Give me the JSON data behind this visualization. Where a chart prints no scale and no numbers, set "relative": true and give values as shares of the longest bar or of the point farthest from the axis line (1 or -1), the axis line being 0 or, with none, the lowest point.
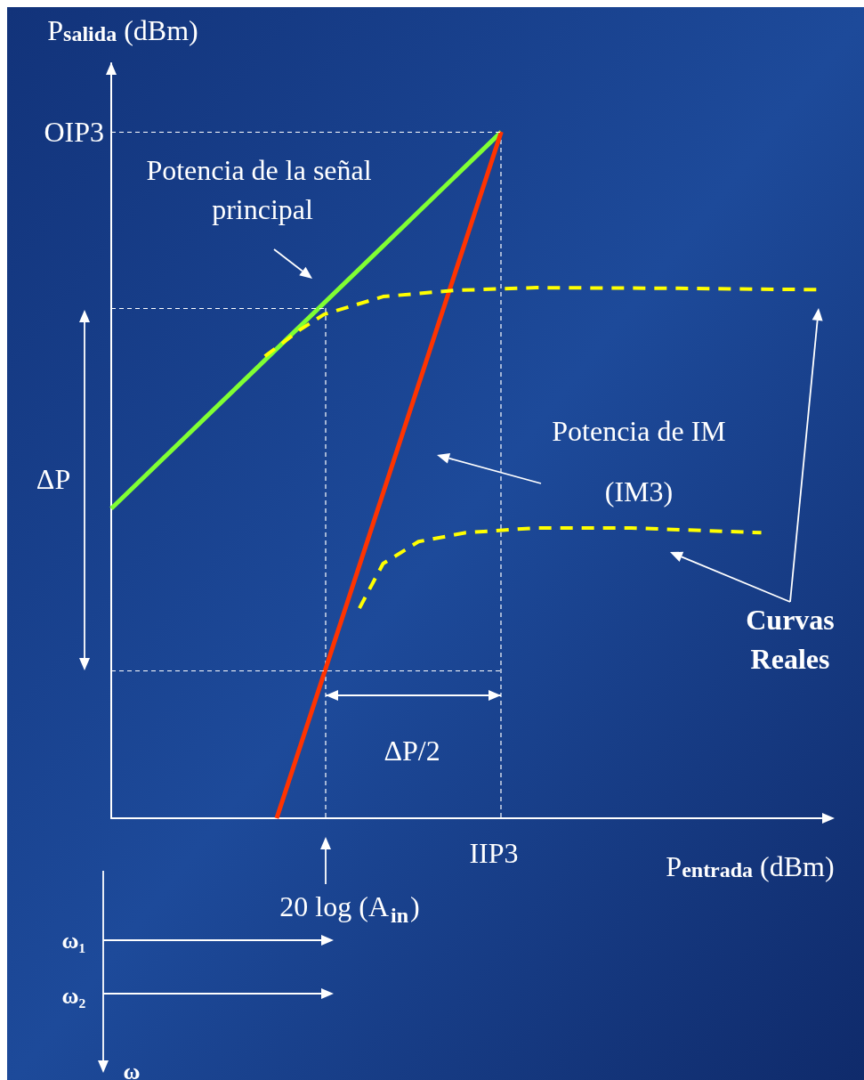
{
  "chart_data": {
    "type": "line",
    "relative": true,
    "xlabel": "P$_{entrada}$ (dBm)",
    "ylabel": "P$_{salida}$ (dBm)",
    "categories": [
      null,
      null,
      null,
      null,
      null,
      null,
      null,
      null,
      null,
      null,
      null,
      null,
      null,
      null,
      null,
      null,
      null,
      null,
      null,
      null,
      null,
      null,
      null,
      null,
      null,
      null,
      null,
      null,
      null,
      null,
      null,
      null,
      null,
      null,
      null,
      null,
      null,
      null,
      null,
      null,
      null,
      null,
      null,
      null,
      null,
      null,
      null,
      null,
      null,
      null,
      null,
      null,
      null,
      null,
      null,
      null,
      null,
      null,
      null,
      null,
      null
    ],
    "grid": false,
    "marker": "none",
    "series": [
      {
        "color": "#80ff33",
        "line_style": "solid",
        "values": [
          0.451,
          null,
          null,
          null,
          null,
          null,
          null,
          null,
          null,
          null,
          null,
          null,
          null,
          null,
          null,
          null,
          null,
          null,
          null,
          null,
          null,
          null,
          null,
          null,
          null,
          null,
          null,
          null,
          null,
          null,
          null,
          null,
          null,
          1,
          null,
          null,
          null,
          null,
          null,
          null,
          null,
          null,
          null,
          null,
          null,
          null,
          null,
          null,
          null,
          null,
          null,
          null,
          null,
          null,
          null,
          null,
          null,
          null,
          null,
          null,
          null
        ]
      },
      {
        "color": "#ff3300",
        "line_style": "solid",
        "values": [
          null,
          null,
          null,
          null,
          null,
          null,
          null,
          null,
          null,
          null,
          null,
          null,
          null,
          null,
          0,
          null,
          null,
          null,
          null,
          null,
          null,
          null,
          null,
          null,
          null,
          null,
          null,
          null,
          null,
          null,
          null,
          null,
          null,
          1,
          null,
          null,
          null,
          null,
          null,
          null,
          null,
          null,
          null,
          null,
          null,
          null,
          null,
          null,
          null,
          null,
          null,
          null,
          null,
          null,
          null,
          null,
          null,
          null,
          null,
          null,
          null
        ]
      },
      {
        "color": "#ffff00",
        "line_style": "dashed",
        "values": [
          null,
          null,
          null,
          null,
          null,
          null,
          null,
          null,
          null,
          null,
          null,
          null,
          null,
          0.673,
          null,
          null,
          0.712,
          null,
          0.734,
          null,
          null,
          null,
          null,
          0.76,
          null,
          null,
          null,
          null,
          null,
          0.769,
          null,
          null,
          null,
          null,
          null,
          null,
          0.773,
          null,
          null,
          null,
          null,
          null,
          null,
          null,
          null,
          null,
          null,
          null,
          0.772,
          null,
          null,
          null,
          null,
          null,
          null,
          null,
          null,
          null,
          null,
          null,
          0.77
        ]
      },
      {
        "color": "#ffff00",
        "line_style": "dashed",
        "values": [
          null,
          null,
          null,
          null,
          null,
          null,
          null,
          null,
          null,
          null,
          null,
          null,
          null,
          null,
          null,
          null,
          null,
          null,
          null,
          null,
          null,
          0.306,
          null,
          0.371,
          null,
          null,
          0.403,
          null,
          null,
          null,
          0.416,
          null,
          null,
          null,
          null,
          null,
          0.423,
          null,
          null,
          null,
          null,
          null,
          null,
          null,
          0.423,
          null,
          null,
          null,
          null,
          null,
          null,
          null,
          null,
          null,
          null,
          0.416,
          null,
          null,
          null,
          null,
          null
        ]
      }
    ],
    "ref_lines": [
      {
        "axis": "y",
        "value": 1,
        "label": "OIP3",
        "color": "#ffffff",
        "line_style": "dashed"
      },
      {
        "axis": "y",
        "value": 0.743,
        "label": null,
        "color": "#ffffff",
        "line_style": "dashed"
      },
      {
        "axis": "y",
        "value": 0.215,
        "label": null,
        "color": "#ffffff",
        "line_style": "dashed"
      }
    ],
    "annotations": [
      "Potencia de la señal principal",
      "Potencia de IM\n(IM3)",
      "Curvas\nReales",
      "ΔP",
      "ΔP/2",
      "ω₁",
      "ω₂",
      "ω",
      "IIP3",
      "20 log (A$_{in}$)"
    ]
  }
}
